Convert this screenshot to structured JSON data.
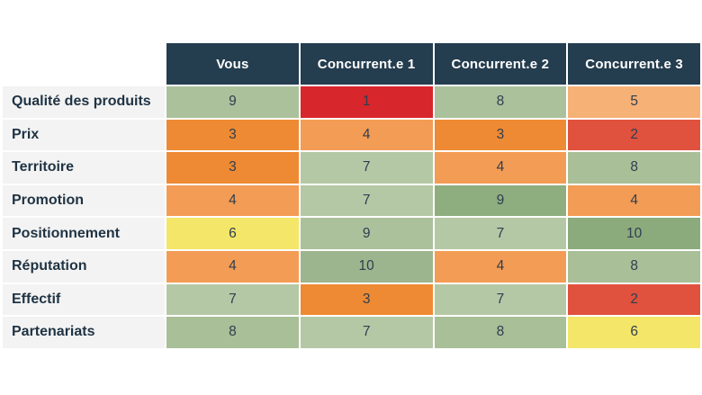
{
  "chart_data": {
    "type": "heatmap",
    "title": "",
    "columns": [
      "Vous",
      "Concurrent.e 1",
      "Concurrent.e 2",
      "Concurrent.e 3"
    ],
    "rows": [
      "Qualité des produits",
      "Prix",
      "Territoire",
      "Promotion",
      "Positionnement",
      "Réputation",
      "Effectif",
      "Partenariats"
    ],
    "values": [
      [
        9,
        1,
        8,
        5
      ],
      [
        3,
        4,
        3,
        2
      ],
      [
        3,
        7,
        4,
        8
      ],
      [
        4,
        7,
        9,
        4
      ],
      [
        6,
        9,
        7,
        10
      ],
      [
        4,
        10,
        4,
        8
      ],
      [
        7,
        3,
        7,
        2
      ],
      [
        8,
        7,
        8,
        6
      ]
    ],
    "value_range": [
      1,
      10
    ],
    "color_scale": "red (low) -> orange -> yellow (mid) -> green (high)",
    "legend": "none",
    "grid": "white gaps between cells"
  },
  "table": {
    "columns": [
      "Vous",
      "Concurrent.e 1",
      "Concurrent.e 2",
      "Concurrent.e 3"
    ],
    "rows": [
      {
        "label": "Qualité des produits",
        "values": [
          9,
          1,
          8,
          5
        ],
        "colors": [
          "#abc19c",
          "#d7262c",
          "#abc19c",
          "#f6b176"
        ]
      },
      {
        "label": "Prix",
        "values": [
          3,
          4,
          3,
          2
        ],
        "colors": [
          "#ee8a33",
          "#f39c55",
          "#ee8a33",
          "#e0523d"
        ]
      },
      {
        "label": "Territoire",
        "values": [
          3,
          7,
          4,
          8
        ],
        "colors": [
          "#ee8a33",
          "#b5c8a6",
          "#f39c55",
          "#a8bf97"
        ]
      },
      {
        "label": "Promotion",
        "values": [
          4,
          7,
          9,
          4
        ],
        "colors": [
          "#f39c55",
          "#b5c8a6",
          "#8fae80",
          "#f39c55"
        ]
      },
      {
        "label": "Positionnement",
        "values": [
          6,
          9,
          7,
          10
        ],
        "colors": [
          "#f4e668",
          "#abc19c",
          "#b5c8a6",
          "#8cab7d"
        ]
      },
      {
        "label": "Réputation",
        "values": [
          4,
          10,
          4,
          8
        ],
        "colors": [
          "#f39c55",
          "#9db58e",
          "#f39c55",
          "#a8bf97"
        ]
      },
      {
        "label": "Effectif",
        "values": [
          7,
          3,
          7,
          2
        ],
        "colors": [
          "#b5c8a6",
          "#ee8a33",
          "#b5c8a6",
          "#e0523d"
        ]
      },
      {
        "label": "Partenariats",
        "values": [
          8,
          7,
          8,
          6
        ],
        "colors": [
          "#a8bf97",
          "#b5c8a6",
          "#a8bf97",
          "#f4e668"
        ]
      }
    ]
  },
  "colors": {
    "header_bg": "#243d4f",
    "header_text": "#ffffff",
    "label_bg": "#f3f3f3",
    "label_text": "#1f3343",
    "cell_text": "#2f3e50",
    "page_bg": "#ffffff"
  }
}
